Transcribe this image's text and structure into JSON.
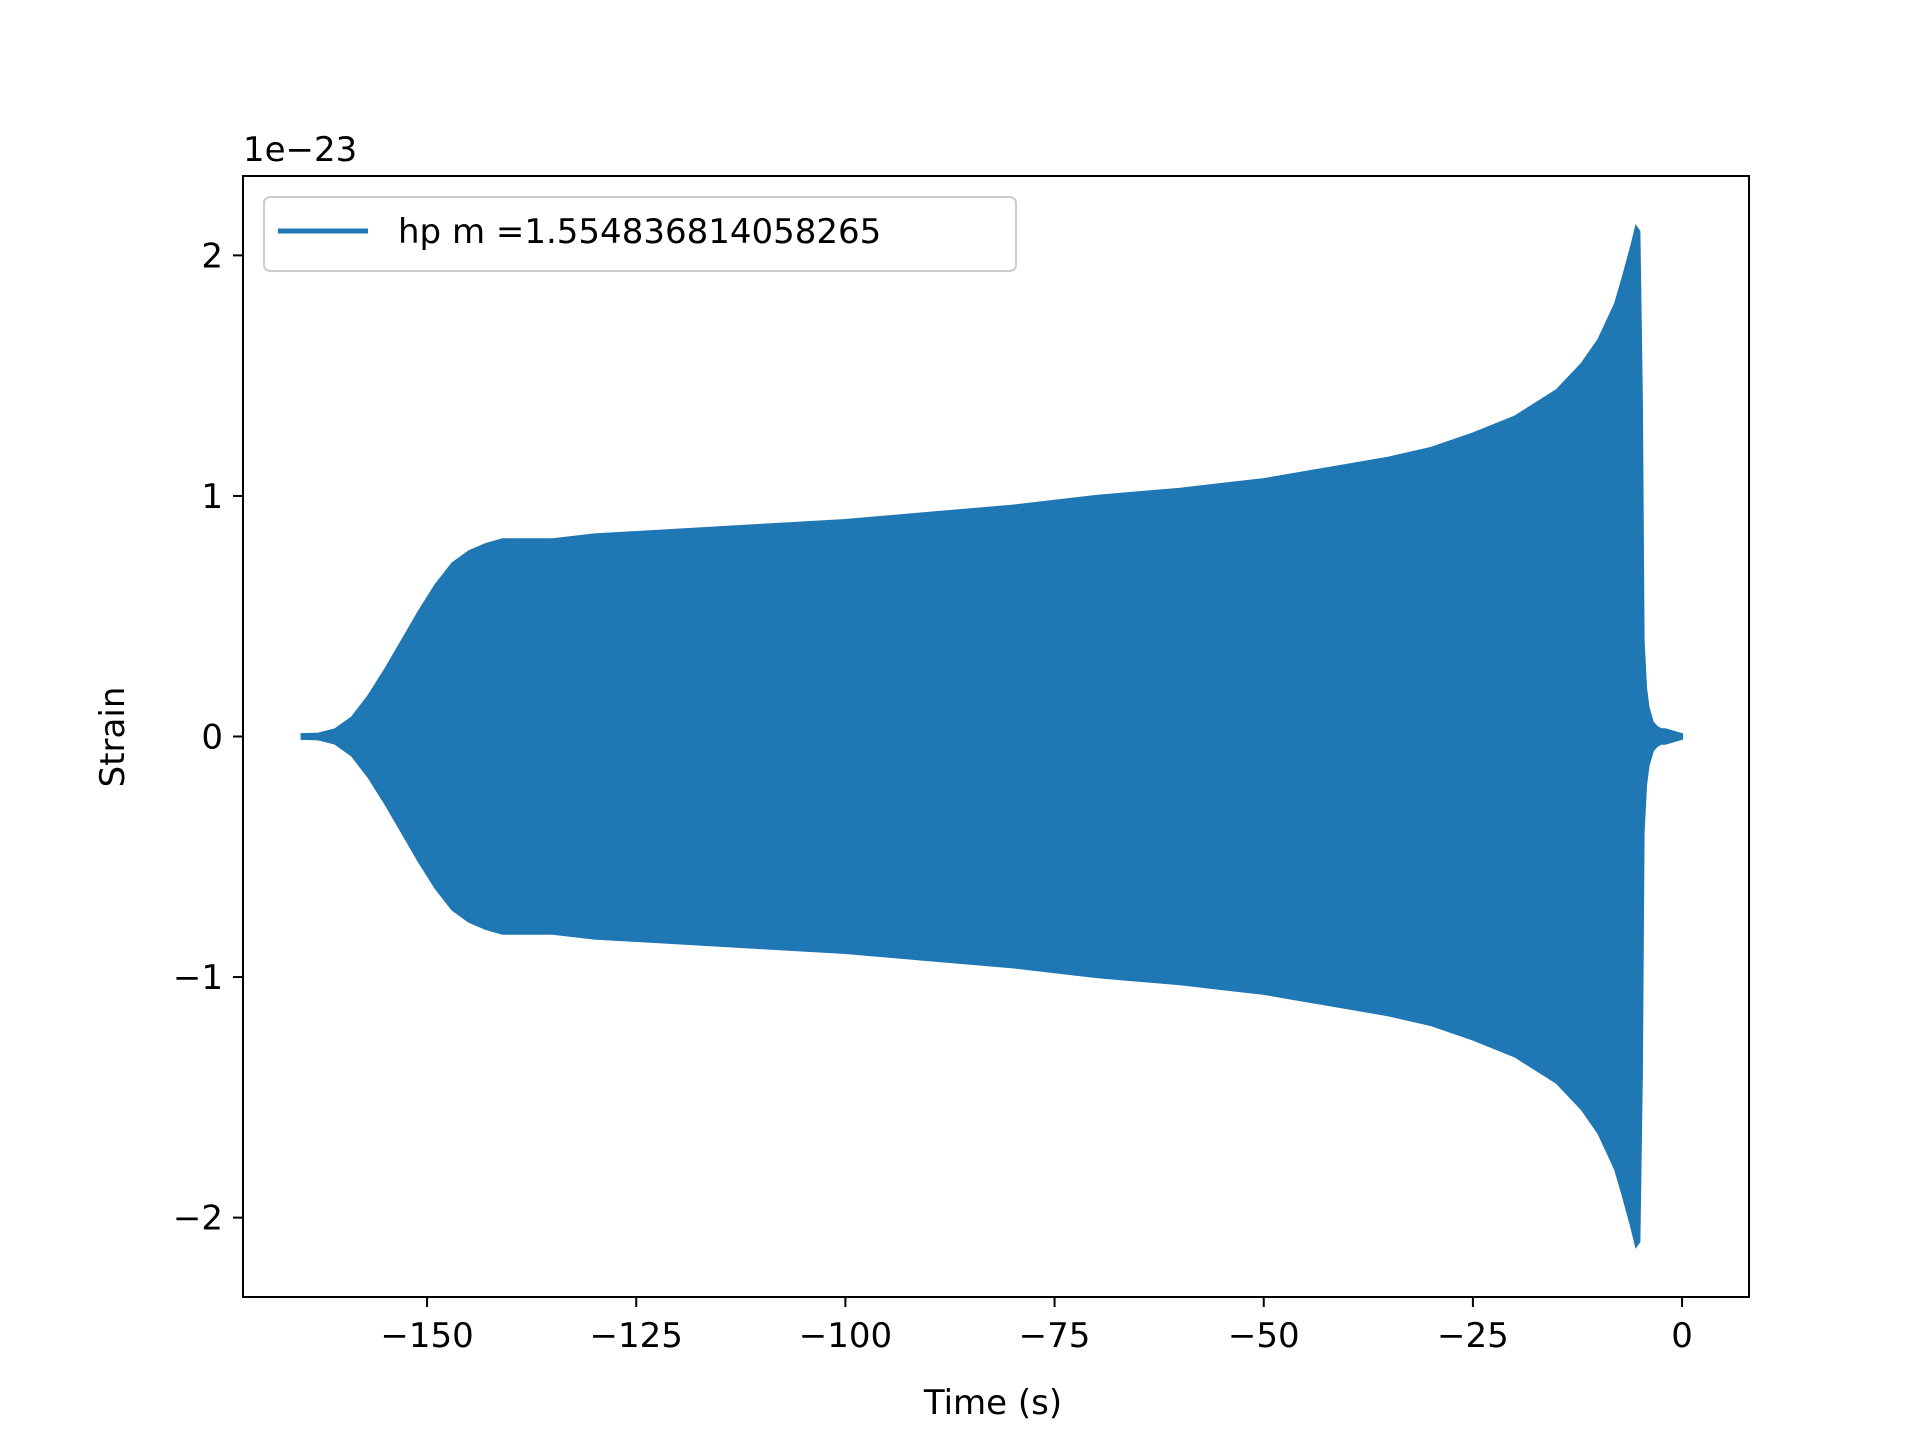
{
  "chart_data": {
    "type": "line",
    "title": "",
    "xlabel": "Time (s)",
    "ylabel": "Strain",
    "y_scale_label": "1e−23",
    "xlim": [
      -172,
      8
    ],
    "ylim": [
      -2.33,
      2.33
    ],
    "x_ticks": [
      {
        "value": -150,
        "label": "−150"
      },
      {
        "value": -125,
        "label": "−125"
      },
      {
        "value": -100,
        "label": "−100"
      },
      {
        "value": -75,
        "label": "−75"
      },
      {
        "value": -50,
        "label": "−50"
      },
      {
        "value": -25,
        "label": "−25"
      },
      {
        "value": 0,
        "label": "0"
      }
    ],
    "y_ticks": [
      {
        "value": 2,
        "label": "2"
      },
      {
        "value": 1,
        "label": "1"
      },
      {
        "value": 0,
        "label": "0"
      },
      {
        "value": -1,
        "label": "−1"
      },
      {
        "value": -2,
        "label": "−2"
      }
    ],
    "grid": false,
    "legend_position": "top-left",
    "series": [
      {
        "name": "hp m =1.554836814058265",
        "color": "#1f77b4",
        "rendering": "dense-oscillation-envelope",
        "upper_envelope": {
          "x": [
            -165,
            -163,
            -161,
            -159,
            -157,
            -155,
            -153,
            -151,
            -149,
            -147,
            -145,
            -143,
            -141,
            -138,
            -135,
            -130,
            -120,
            -110,
            -100,
            -90,
            -80,
            -70,
            -60,
            -55,
            -50,
            -45,
            -40,
            -35,
            -30,
            -25,
            -20,
            -15,
            -12,
            -10,
            -8,
            -7,
            -6,
            -5.5,
            -5.1,
            -4.8,
            -4.6,
            -4.3,
            -4.0,
            -3.5,
            -3.0,
            -2.5,
            -2.0,
            -1.5,
            -1.0,
            -0.5,
            0
          ],
          "y": [
            0.01,
            0.012,
            0.03,
            0.08,
            0.17,
            0.28,
            0.4,
            0.52,
            0.63,
            0.72,
            0.77,
            0.8,
            0.82,
            0.82,
            0.82,
            0.84,
            0.86,
            0.88,
            0.9,
            0.93,
            0.96,
            1.0,
            1.03,
            1.05,
            1.07,
            1.1,
            1.13,
            1.16,
            1.2,
            1.26,
            1.33,
            1.44,
            1.55,
            1.65,
            1.8,
            1.92,
            2.05,
            2.12,
            2.1,
            1.4,
            0.4,
            0.2,
            0.12,
            0.06,
            0.04,
            0.03,
            0.03,
            0.025,
            0.02,
            0.015,
            0.01
          ]
        },
        "lower_envelope": {
          "x": [
            -165,
            -163,
            -161,
            -159,
            -157,
            -155,
            -153,
            -151,
            -149,
            -147,
            -145,
            -143,
            -141,
            -138,
            -135,
            -130,
            -120,
            -110,
            -100,
            -90,
            -80,
            -70,
            -60,
            -55,
            -50,
            -45,
            -40,
            -35,
            -30,
            -25,
            -20,
            -15,
            -12,
            -10,
            -8,
            -7,
            -6,
            -5.5,
            -5.1,
            -4.8,
            -4.6,
            -4.3,
            -4.0,
            -3.5,
            -3.0,
            -2.5,
            -2.0,
            -1.5,
            -1.0,
            -0.5,
            0
          ],
          "y": [
            -0.01,
            -0.012,
            -0.03,
            -0.08,
            -0.17,
            -0.28,
            -0.4,
            -0.52,
            -0.63,
            -0.72,
            -0.77,
            -0.8,
            -0.82,
            -0.82,
            -0.82,
            -0.84,
            -0.86,
            -0.88,
            -0.9,
            -0.93,
            -0.96,
            -1.0,
            -1.03,
            -1.05,
            -1.07,
            -1.1,
            -1.13,
            -1.16,
            -1.2,
            -1.26,
            -1.33,
            -1.44,
            -1.55,
            -1.65,
            -1.8,
            -1.92,
            -2.05,
            -2.12,
            -2.1,
            -1.4,
            -0.4,
            -0.2,
            -0.12,
            -0.06,
            -0.04,
            -0.03,
            -0.03,
            -0.025,
            -0.02,
            -0.015,
            -0.01
          ]
        }
      }
    ]
  }
}
